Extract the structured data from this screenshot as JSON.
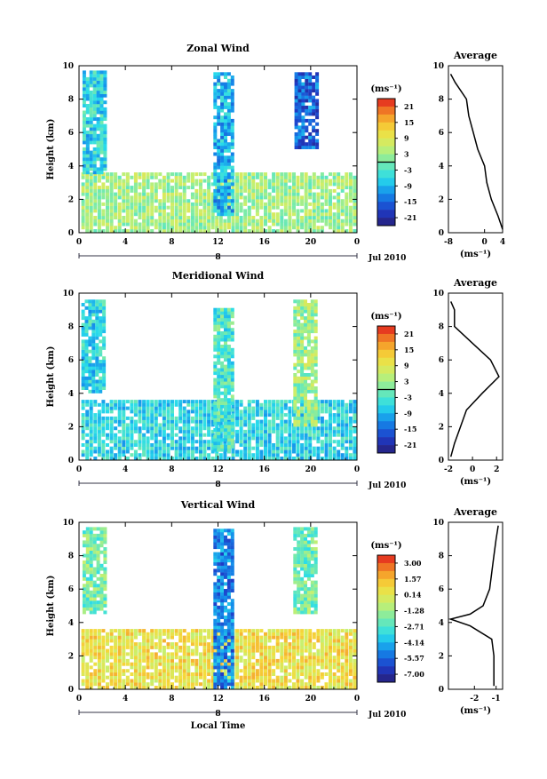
{
  "chart_data": [
    {
      "type": "heatmap",
      "title": "Zonal Wind",
      "ylabel": "Height (km)",
      "xlabel": "",
      "x_ticks": [
        "0",
        "4",
        "8",
        "12",
        "16",
        "20",
        "0"
      ],
      "y_ticks": [
        "0",
        "2",
        "4",
        "6",
        "8",
        "10"
      ],
      "xlim": [
        0,
        24
      ],
      "ylim": [
        0,
        10
      ],
      "date_marker": "8",
      "date_label": "Jul 2010",
      "colorbar": {
        "unit": "(ms⁻¹)",
        "ticks": [
          "21",
          "15",
          "9",
          "3",
          "-3",
          "-9",
          "-15",
          "-21"
        ],
        "range": [
          -24,
          24
        ],
        "zero_line": 0
      },
      "data_coverage": {
        "lower_layer_top_km": 3.5,
        "lower_layer_value": 3,
        "upper_blocks": [
          {
            "x": [
              0.3,
              2.2
            ],
            "y": [
              3.5,
              9.5
            ],
            "value": -6
          },
          {
            "x": [
              11.6,
              13.2
            ],
            "y": [
              1,
              9.5
            ],
            "value": -9
          },
          {
            "x": [
              18.6,
              20.5
            ],
            "y": [
              5,
              9.5
            ],
            "value": -15
          }
        ]
      },
      "profile": {
        "title": "Average",
        "xlabel": "(ms⁻¹)",
        "xlim": [
          -8,
          4
        ],
        "x_ticks": [
          "-8",
          "0",
          "4"
        ],
        "y_ticks": [
          "0",
          "2",
          "4",
          "6",
          "8",
          "10"
        ],
        "heights": [
          0.2,
          1,
          2,
          3,
          4,
          5,
          6,
          7,
          8,
          9,
          9.5
        ],
        "values": [
          4,
          3,
          1.5,
          0.5,
          0,
          -1.5,
          -2.5,
          -3.5,
          -4,
          -6.5,
          -7.5
        ]
      }
    },
    {
      "type": "heatmap",
      "title": "Meridional Wind",
      "ylabel": "Height (km)",
      "xlabel": "",
      "x_ticks": [
        "0",
        "4",
        "8",
        "12",
        "16",
        "20",
        "0"
      ],
      "y_ticks": [
        "0",
        "2",
        "4",
        "6",
        "8",
        "10"
      ],
      "xlim": [
        0,
        24
      ],
      "ylim": [
        0,
        10
      ],
      "date_marker": "8",
      "date_label": "Jul 2010",
      "colorbar": {
        "unit": "(ms⁻¹)",
        "ticks": [
          "21",
          "15",
          "9",
          "3",
          "-3",
          "-9",
          "-15",
          "-21"
        ],
        "range": [
          -24,
          24
        ],
        "zero_line": 0
      },
      "data_coverage": {
        "lower_layer_top_km": 3.5,
        "lower_layer_value": -6,
        "upper_blocks": [
          {
            "x": [
              0.2,
              2.2
            ],
            "y": [
              4,
              9.5
            ],
            "value": -6
          },
          {
            "x": [
              11.6,
              13.2
            ],
            "y": [
              0.5,
              9
            ],
            "value": -3
          },
          {
            "x": [
              18.5,
              20.5
            ],
            "y": [
              2,
              9.5
            ],
            "value": 3
          }
        ]
      },
      "profile": {
        "title": "Average",
        "xlabel": "(ms⁻¹)",
        "xlim": [
          -2,
          2.5
        ],
        "x_ticks": [
          "-2",
          "0",
          "2"
        ],
        "y_ticks": [
          "0",
          "2",
          "4",
          "6",
          "8",
          "10"
        ],
        "heights": [
          0.2,
          1,
          2,
          3,
          4,
          5,
          6,
          7,
          8,
          9,
          9.5
        ],
        "values": [
          -1.8,
          -1.5,
          -1,
          -0.5,
          0.8,
          2.2,
          1.5,
          0,
          -1.5,
          -1.5,
          -1.8
        ]
      }
    },
    {
      "type": "heatmap",
      "title": "Vertical Wind",
      "ylabel": "Height (km)",
      "xlabel": "Local Time",
      "x_ticks": [
        "0",
        "4",
        "8",
        "12",
        "16",
        "20",
        "0"
      ],
      "y_ticks": [
        "0",
        "2",
        "4",
        "6",
        "8",
        "10"
      ],
      "xlim": [
        0,
        24
      ],
      "ylim": [
        0,
        10
      ],
      "date_marker": "8",
      "date_label": "Jul 2010",
      "colorbar": {
        "unit": "(ms⁻¹)",
        "ticks": [
          "3.00",
          "1.57",
          "0.14",
          "-1.28",
          "-2.71",
          "-4.14",
          "-5.57",
          "-7.00"
        ],
        "range": [
          -7.71,
          3.71
        ]
      },
      "data_coverage": {
        "lower_layer_top_km": 3.5,
        "lower_layer_value": 0.5,
        "upper_blocks": [
          {
            "x": [
              0.3,
              2.2
            ],
            "y": [
              4.5,
              9.5
            ],
            "value": -2
          },
          {
            "x": [
              11.6,
              13.2
            ],
            "y": [
              0,
              9.5
            ],
            "value": -5
          },
          {
            "x": [
              18.5,
              20.5
            ],
            "y": [
              4.5,
              9.5
            ],
            "value": -2
          }
        ]
      },
      "profile": {
        "title": "Average",
        "xlabel": "(ms⁻¹)",
        "xlim": [
          -3.2,
          -0.7
        ],
        "x_ticks": [
          "-2",
          "-1"
        ],
        "y_ticks": [
          "0",
          "2",
          "4",
          "6",
          "8",
          "10"
        ],
        "heights": [
          0.2,
          1,
          2,
          3,
          3.8,
          4.2,
          4.5,
          5,
          6,
          7,
          8,
          9,
          9.8
        ],
        "values": [
          -1.1,
          -1.1,
          -1.1,
          -1.2,
          -2.2,
          -3.1,
          -2.2,
          -1.6,
          -1.3,
          -1.2,
          -1.1,
          -1,
          -0.9
        ]
      }
    }
  ]
}
